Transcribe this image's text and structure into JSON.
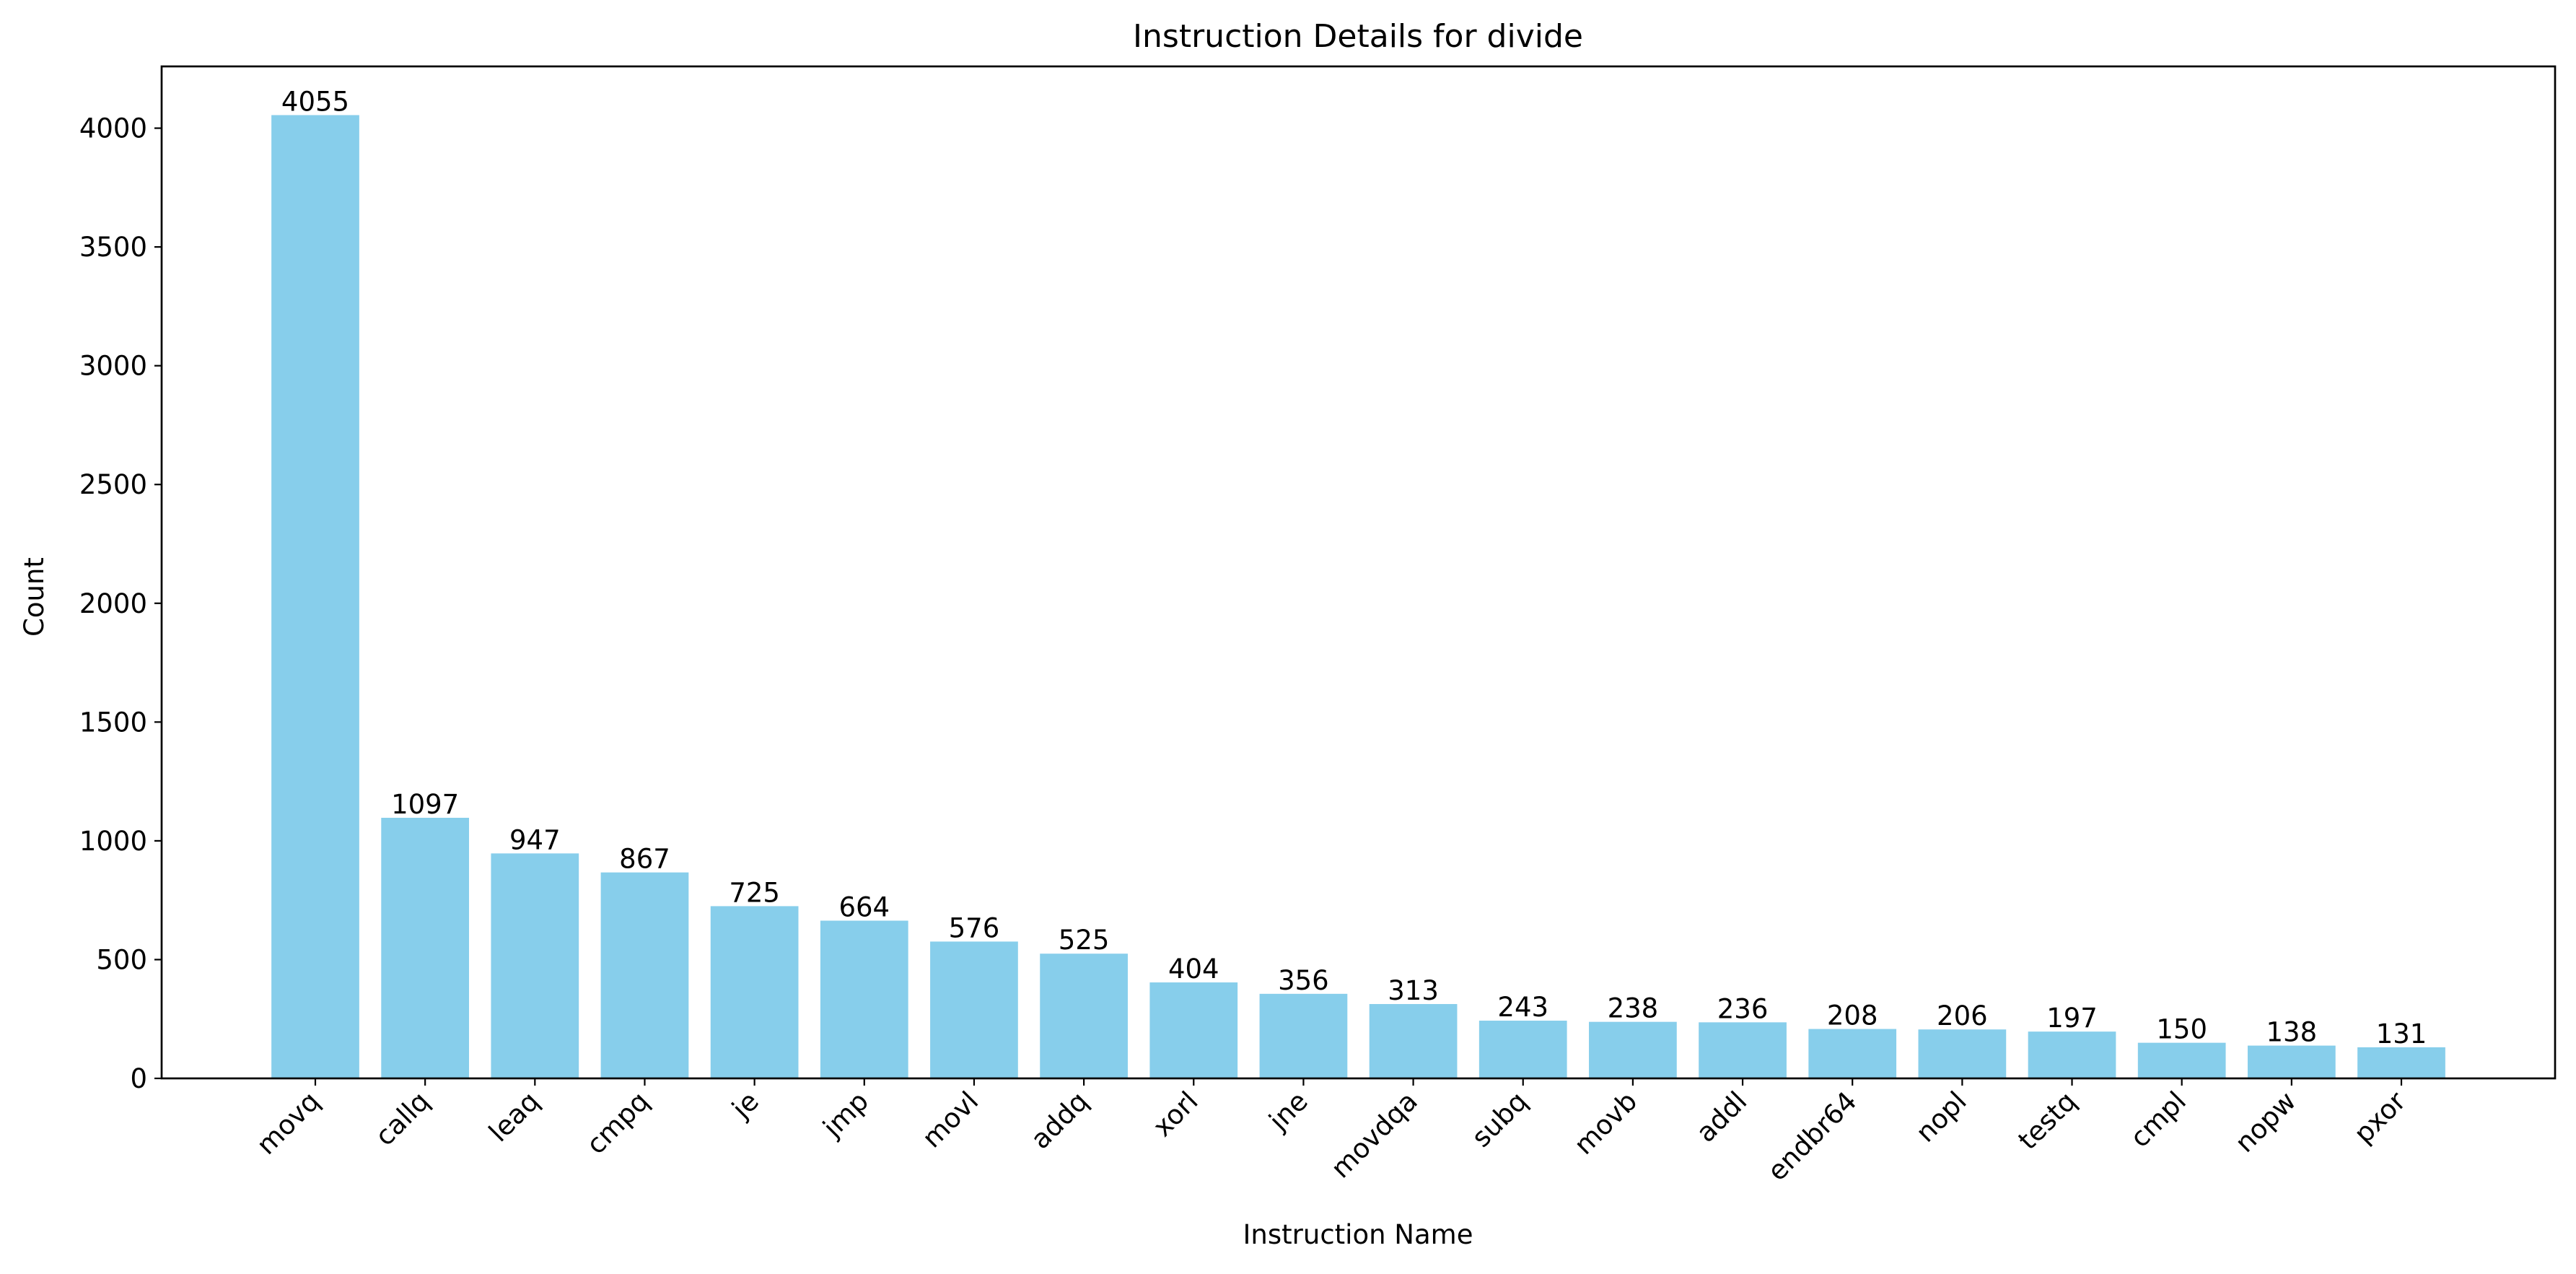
{
  "chart_data": {
    "type": "bar",
    "title": "Instruction Details for divide",
    "xlabel": "Instruction Name",
    "ylabel": "Count",
    "categories": [
      "movq",
      "callq",
      "leaq",
      "cmpq",
      "je",
      "jmp",
      "movl",
      "addq",
      "xorl",
      "jne",
      "movdqa",
      "subq",
      "movb",
      "addl",
      "endbr64",
      "nopl",
      "testq",
      "cmpl",
      "nopw",
      "pxor"
    ],
    "values": [
      4055,
      1097,
      947,
      867,
      725,
      664,
      576,
      525,
      404,
      356,
      313,
      243,
      238,
      236,
      208,
      206,
      197,
      150,
      138,
      131
    ],
    "ylim": [
      0,
      4260
    ],
    "yticks": [
      0,
      500,
      1000,
      1500,
      2000,
      2500,
      3000,
      3500,
      4000
    ],
    "bar_color": "#87ceeb",
    "grid": false,
    "legend": "none"
  }
}
